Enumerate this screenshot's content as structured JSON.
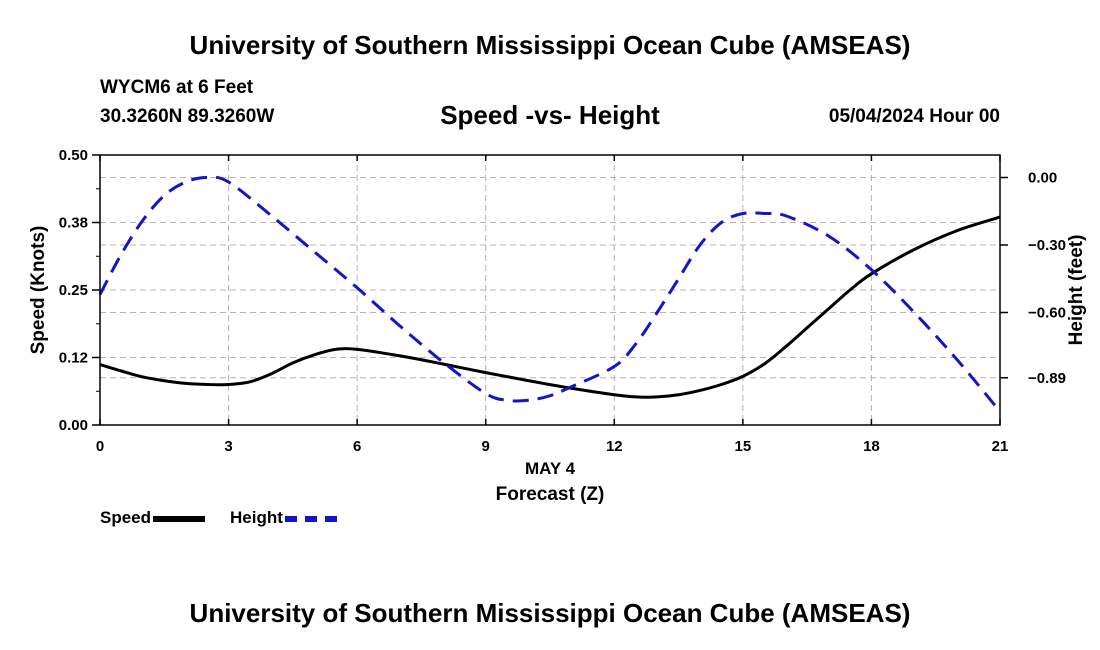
{
  "page": {
    "title": "University of Southern Mississippi Ocean Cube (AMSEAS)",
    "footer_title": "University of Southern Mississippi Ocean Cube (AMSEAS)",
    "station": "WYCM6 at 6 Feet",
    "coordinates": "30.3260N  89.3260W",
    "datetime": "05/04/2024 Hour 00"
  },
  "chart_data": {
    "type": "line",
    "title": "Speed -vs- Height",
    "xlabel": "Forecast (Z)",
    "xlabel_date": "MAY 4",
    "ylabel": "Speed (Knots)",
    "y2label": "Height (feet)",
    "x_ticks": [
      0,
      3,
      6,
      9,
      12,
      15,
      18,
      21
    ],
    "x_tick_labels": [
      "0",
      "3",
      "6",
      "9",
      "12",
      "15",
      "18",
      "21"
    ],
    "xlim": [
      0,
      21
    ],
    "ylim": [
      0,
      0.5
    ],
    "y_ticks": [
      0,
      0.125,
      0.25,
      0.375,
      0.5
    ],
    "y_tick_labels": [
      "0.00",
      "0.12",
      "0.25",
      "0.38",
      "0.50"
    ],
    "y2lim": [
      -1.1,
      0.1
    ],
    "y2_ticks": [
      0.0,
      -0.3,
      -0.6,
      -0.89
    ],
    "y2_tick_labels": [
      "0.00",
      "−0.30",
      "−0.60",
      "−0.89"
    ],
    "grid": true,
    "legend_position": "bottom-left",
    "series": [
      {
        "name": "Speed",
        "axis": "left",
        "color": "#000000",
        "dash": "solid",
        "x": [
          0,
          0.5,
          1,
          1.5,
          2,
          2.5,
          3,
          3.5,
          4,
          4.5,
          5,
          5.5,
          6,
          7,
          8,
          9,
          10,
          11,
          12,
          12.5,
          13,
          13.5,
          14,
          14.5,
          15,
          15.5,
          16,
          16.5,
          17,
          17.5,
          18,
          19,
          20,
          21
        ],
        "values": [
          0.112,
          0.1,
          0.089,
          0.082,
          0.077,
          0.075,
          0.075,
          0.08,
          0.095,
          0.115,
          0.13,
          0.14,
          0.14,
          0.128,
          0.113,
          0.097,
          0.082,
          0.068,
          0.056,
          0.052,
          0.052,
          0.056,
          0.064,
          0.075,
          0.09,
          0.113,
          0.145,
          0.18,
          0.215,
          0.25,
          0.28,
          0.325,
          0.36,
          0.385
        ]
      },
      {
        "name": "Height",
        "axis": "right",
        "color": "#1414c8",
        "dash": "dashed",
        "x": [
          0,
          0.5,
          1,
          1.5,
          2,
          2.5,
          3,
          4,
          5,
          6,
          7,
          8,
          9,
          9.5,
          10,
          10.5,
          11,
          12,
          12.5,
          13,
          13.5,
          14,
          14.5,
          15,
          15.5,
          16,
          17,
          18,
          19,
          20,
          21
        ],
        "values": [
          -0.52,
          -0.34,
          -0.19,
          -0.08,
          -0.02,
          0.0,
          -0.02,
          -0.17,
          -0.33,
          -0.49,
          -0.66,
          -0.82,
          -0.96,
          -0.99,
          -0.99,
          -0.97,
          -0.93,
          -0.84,
          -0.74,
          -0.6,
          -0.45,
          -0.3,
          -0.2,
          -0.16,
          -0.16,
          -0.17,
          -0.26,
          -0.41,
          -0.6,
          -0.81,
          -1.04
        ]
      }
    ]
  }
}
